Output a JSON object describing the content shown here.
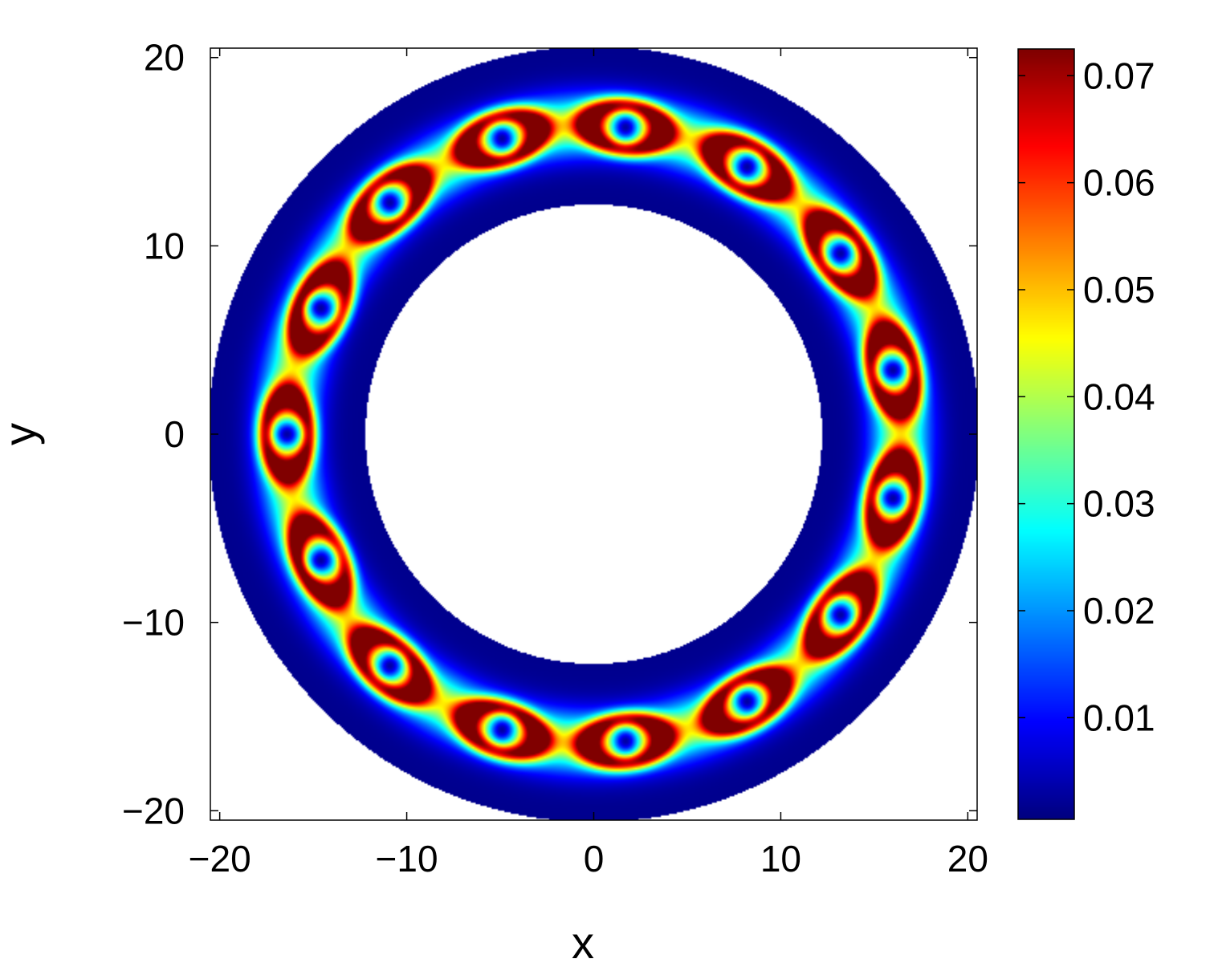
{
  "chart_data": {
    "type": "heatmap",
    "title": "",
    "xlabel": "x",
    "ylabel": "y",
    "xlim": [
      -20.5,
      20.5
    ],
    "ylim": [
      -20.5,
      20.5
    ],
    "xticks": [
      {
        "value": -20,
        "label": "−20"
      },
      {
        "value": -10,
        "label": "−10"
      },
      {
        "value": 0,
        "label": "0"
      },
      {
        "value": 10,
        "label": "10"
      },
      {
        "value": 20,
        "label": "20"
      }
    ],
    "yticks": [
      {
        "value": 20,
        "label": "20"
      },
      {
        "value": 10,
        "label": "10"
      },
      {
        "value": 0,
        "label": "0"
      },
      {
        "value": -10,
        "label": "−10"
      },
      {
        "value": -20,
        "label": "−20"
      }
    ],
    "colorbar": {
      "min": 0.0005,
      "max": 0.0725,
      "colormap": "jet",
      "ticks": [
        {
          "value": 0.01,
          "label": "0.01"
        },
        {
          "value": 0.02,
          "label": "0.02"
        },
        {
          "value": 0.03,
          "label": "0.03"
        },
        {
          "value": 0.04,
          "label": "0.04"
        },
        {
          "value": 0.05,
          "label": "0.05"
        },
        {
          "value": 0.06,
          "label": "0.06"
        },
        {
          "value": 0.07,
          "label": "0.07"
        }
      ]
    },
    "annulus": {
      "inner_radius": 12.2,
      "outer_radius": 20.6,
      "density_ring_radius": 16.4
    },
    "vortices": [
      {
        "x": 1.7,
        "y": 16.3
      },
      {
        "x": 8.2,
        "y": 14.2
      },
      {
        "x": 13.2,
        "y": 9.6
      },
      {
        "x": 16.0,
        "y": 3.4
      },
      {
        "x": 16.0,
        "y": -3.4
      },
      {
        "x": 13.2,
        "y": -9.6
      },
      {
        "x": 8.2,
        "y": -14.2
      },
      {
        "x": 1.7,
        "y": -16.3
      },
      {
        "x": -4.9,
        "y": -15.7
      },
      {
        "x": -10.9,
        "y": -12.3
      },
      {
        "x": -14.6,
        "y": -6.7
      },
      {
        "x": -16.4,
        "y": 0.0
      },
      {
        "x": -14.6,
        "y": 6.7
      },
      {
        "x": -10.9,
        "y": 12.3
      },
      {
        "x": -4.9,
        "y": 15.7
      }
    ]
  }
}
